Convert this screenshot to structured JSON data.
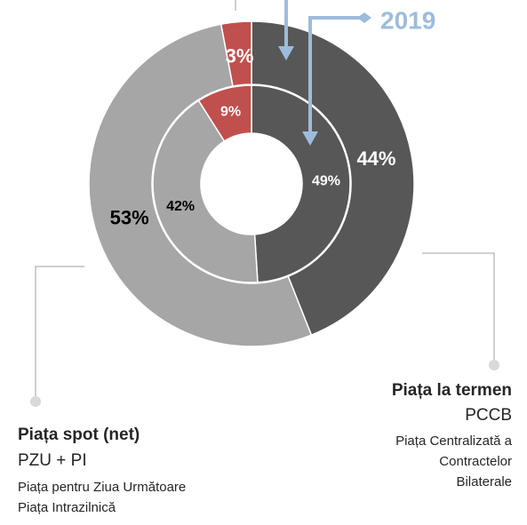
{
  "chart_data": {
    "type": "donut",
    "series": [
      {
        "values": [
          44,
          53,
          3
        ],
        "value_labels": [
          "44%",
          "53%",
          "3%"
        ],
        "colors": [
          "#575757",
          "#a6a6a6",
          "#c0504d"
        ],
        "label_colors": [
          "#ffffff",
          "#000000",
          "#ffffff"
        ]
      },
      {
        "name": "2019",
        "values": [
          49,
          42,
          9
        ],
        "value_labels": [
          "49%",
          "42%",
          "9%"
        ],
        "colors": [
          "#575757",
          "#a6a6a6",
          "#c0504d"
        ],
        "label_colors": [
          "#ffffff",
          "#000000",
          "#ffffff"
        ]
      }
    ],
    "annotations": [
      {
        "title": "Piața spot (net)",
        "subtitle": "PZU + PI",
        "lines": [
          "Piața pentru Ziua Următoare",
          "Piața Intrazilnică"
        ]
      },
      {
        "title": "Piața la termen",
        "subtitle": "PCCB",
        "lines": [
          "Piața Centralizată a",
          "Contractelor",
          "Bilaterale"
        ]
      }
    ]
  }
}
